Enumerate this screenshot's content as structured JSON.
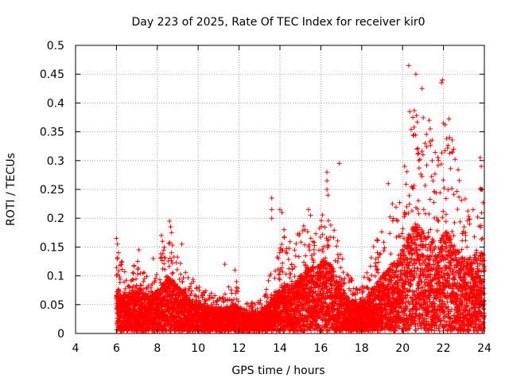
{
  "chart_data": {
    "type": "scatter",
    "title": "Day 223 of 2025, Rate Of TEC Index for receiver kir0",
    "xlabel": "GPS time / hours",
    "ylabel": "ROTI / TECUs",
    "xlim": [
      4,
      24
    ],
    "ylim": [
      0,
      0.5
    ],
    "x_ticks": [
      "4",
      "6",
      "8",
      "10",
      "12",
      "14",
      "16",
      "18",
      "20",
      "22",
      "24"
    ],
    "y_ticks": [
      "0",
      "0.05",
      "0.1",
      "0.15",
      "0.2",
      "0.25",
      "0.3",
      "0.35",
      "0.4",
      "0.45",
      "0.5"
    ],
    "grid": true,
    "marker": "+",
    "series_color": "#ff0000",
    "envelope": {
      "x": [
        6.0,
        6.3,
        6.6,
        7.0,
        7.4,
        7.8,
        8.2,
        8.6,
        9.0,
        9.4,
        9.8,
        10.2,
        10.6,
        11.0,
        11.4,
        11.8,
        12.2,
        12.6,
        13.0,
        13.4,
        13.8,
        14.2,
        14.6,
        15.0,
        15.4,
        15.8,
        16.2,
        16.6,
        17.0,
        17.4,
        17.8,
        18.2,
        18.6,
        19.0,
        19.4,
        19.8,
        20.2,
        20.6,
        21.0,
        21.4,
        21.8,
        22.2,
        22.6,
        23.0,
        23.4,
        23.8,
        24.0
      ],
      "upper": [
        0.14,
        0.12,
        0.09,
        0.13,
        0.1,
        0.09,
        0.14,
        0.16,
        0.15,
        0.1,
        0.09,
        0.07,
        0.07,
        0.06,
        0.07,
        0.1,
        0.05,
        0.05,
        0.05,
        0.09,
        0.12,
        0.17,
        0.15,
        0.18,
        0.19,
        0.19,
        0.21,
        0.2,
        0.15,
        0.1,
        0.08,
        0.1,
        0.15,
        0.18,
        0.21,
        0.22,
        0.3,
        0.4,
        0.38,
        0.34,
        0.3,
        0.4,
        0.3,
        0.24,
        0.22,
        0.28,
        0.25
      ],
      "mid": [
        0.05,
        0.04,
        0.04,
        0.05,
        0.04,
        0.04,
        0.05,
        0.06,
        0.05,
        0.04,
        0.03,
        0.03,
        0.025,
        0.025,
        0.025,
        0.03,
        0.02,
        0.02,
        0.02,
        0.03,
        0.04,
        0.05,
        0.05,
        0.06,
        0.07,
        0.07,
        0.08,
        0.07,
        0.05,
        0.035,
        0.03,
        0.035,
        0.05,
        0.06,
        0.07,
        0.08,
        0.1,
        0.12,
        0.11,
        0.1,
        0.1,
        0.11,
        0.09,
        0.08,
        0.08,
        0.09,
        0.08
      ]
    },
    "outliers": [
      {
        "x": 6.0,
        "y": 0.165
      },
      {
        "x": 6.05,
        "y": 0.155
      },
      {
        "x": 6.1,
        "y": 0.14
      },
      {
        "x": 7.1,
        "y": 0.145
      },
      {
        "x": 7.8,
        "y": 0.13
      },
      {
        "x": 8.2,
        "y": 0.17
      },
      {
        "x": 8.25,
        "y": 0.16
      },
      {
        "x": 8.6,
        "y": 0.195
      },
      {
        "x": 8.65,
        "y": 0.185
      },
      {
        "x": 8.7,
        "y": 0.175
      },
      {
        "x": 8.7,
        "y": 0.14
      },
      {
        "x": 9.2,
        "y": 0.155
      },
      {
        "x": 11.3,
        "y": 0.12
      },
      {
        "x": 11.8,
        "y": 0.11
      },
      {
        "x": 13.6,
        "y": 0.235
      },
      {
        "x": 13.6,
        "y": 0.215
      },
      {
        "x": 13.6,
        "y": 0.2
      },
      {
        "x": 14.0,
        "y": 0.215
      },
      {
        "x": 14.1,
        "y": 0.21
      },
      {
        "x": 14.2,
        "y": 0.18
      },
      {
        "x": 15.4,
        "y": 0.215
      },
      {
        "x": 15.5,
        "y": 0.205
      },
      {
        "x": 16.3,
        "y": 0.28
      },
      {
        "x": 16.3,
        "y": 0.265
      },
      {
        "x": 16.3,
        "y": 0.25
      },
      {
        "x": 16.35,
        "y": 0.24
      },
      {
        "x": 16.9,
        "y": 0.295
      },
      {
        "x": 19.3,
        "y": 0.26
      },
      {
        "x": 19.5,
        "y": 0.225
      },
      {
        "x": 20.1,
        "y": 0.29
      },
      {
        "x": 20.3,
        "y": 0.465
      },
      {
        "x": 20.35,
        "y": 0.385
      },
      {
        "x": 20.5,
        "y": 0.375
      },
      {
        "x": 20.55,
        "y": 0.345
      },
      {
        "x": 20.65,
        "y": 0.45
      },
      {
        "x": 20.7,
        "y": 0.32
      },
      {
        "x": 20.8,
        "y": 0.3
      },
      {
        "x": 20.95,
        "y": 0.425
      },
      {
        "x": 21.0,
        "y": 0.31
      },
      {
        "x": 21.1,
        "y": 0.33
      },
      {
        "x": 21.3,
        "y": 0.37
      },
      {
        "x": 21.35,
        "y": 0.355
      },
      {
        "x": 21.9,
        "y": 0.435
      },
      {
        "x": 21.95,
        "y": 0.44
      },
      {
        "x": 22.0,
        "y": 0.365
      },
      {
        "x": 22.3,
        "y": 0.34
      },
      {
        "x": 22.5,
        "y": 0.32
      },
      {
        "x": 23.8,
        "y": 0.305
      },
      {
        "x": 23.85,
        "y": 0.29
      },
      {
        "x": 23.9,
        "y": 0.25
      }
    ]
  }
}
